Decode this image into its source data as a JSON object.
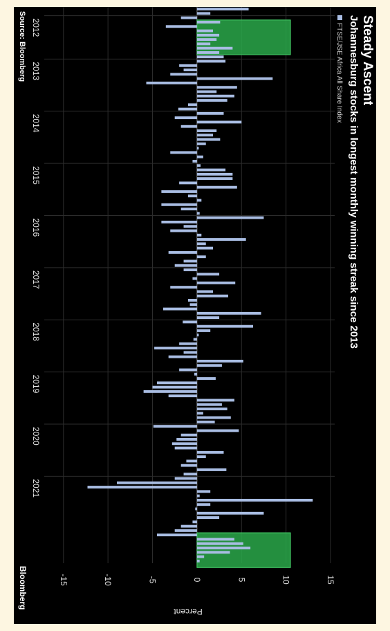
{
  "chart_data": {
    "type": "bar",
    "title": "Steady Ascent",
    "subtitle": "Johannesburg stocks in longest monthly winning streak since 2013",
    "ylabel": "Percent",
    "ylim": [
      -17,
      15
    ],
    "yticks": [
      -15,
      -10,
      -5,
      0,
      5,
      10,
      15
    ],
    "grid": true,
    "legend": "top-left",
    "series": [
      {
        "name": "FTSE/JSE Africa All Share Index",
        "color": "#a9bde3",
        "values": [
          5.8,
          1.5,
          -1.8,
          2.6,
          -3.5,
          1.8,
          2.5,
          2.2,
          1.5,
          4.0,
          2.5,
          3.0,
          3.2,
          -2.0,
          -1.5,
          -3.0,
          8.5,
          -5.7,
          4.5,
          2.2,
          4.2,
          3.4,
          -1.0,
          -2.1,
          3.0,
          -2.5,
          5.0,
          -1.8,
          2.2,
          1.8,
          2.6,
          1.0,
          0.2,
          -3.0,
          0.7,
          -0.5,
          0.4,
          3.2,
          4.0,
          4.0,
          -2.0,
          4.5,
          -4.0,
          -1.0,
          0.5,
          -4.0,
          -1.8,
          0.3,
          7.5,
          -4.0,
          -1.5,
          -3.0,
          0.5,
          5.5,
          1.0,
          1.8,
          -3.2,
          1.0,
          -1.5,
          -2.5,
          -1.5,
          2.5,
          -0.5,
          4.3,
          -3.0,
          1.8,
          3.5,
          -1.0,
          -0.8,
          -3.8,
          7.2,
          2.5,
          -1.6,
          6.3,
          1.5,
          0.2,
          -0.4,
          -2.0,
          -4.8,
          -1.5,
          -3.2,
          5.2,
          2.8,
          -2.0,
          -0.3,
          2.1,
          -4.5,
          -5.0,
          -6.0,
          -3.2,
          4.2,
          2.8,
          3.4,
          0.7,
          3.8,
          2.0,
          -4.9,
          4.7,
          -1.8,
          -2.3,
          -2.8,
          -2.5,
          3.0,
          1.0,
          -1.2,
          -1.8,
          3.3,
          -1.5,
          -2.5,
          -9.0,
          -12.3,
          1.5,
          0.3,
          13.0,
          1.5,
          -0.2,
          7.5,
          2.5,
          -0.5,
          -1.8,
          -2.5,
          -4.5,
          4.2,
          5.2,
          6.0,
          3.7,
          0.8,
          0.3
        ]
      }
    ],
    "x_ticks": [
      "2012",
      "2013",
      "2014",
      "2015",
      "2016",
      "2017",
      "2018",
      "2019",
      "2020",
      "2021"
    ],
    "x_tick_months": [
      2,
      12,
      24,
      36,
      48,
      60,
      72,
      84,
      96,
      108
    ],
    "highlights": [
      {
        "from_month": 3,
        "to_month": 11,
        "ylim": [
          0,
          10.5
        ],
        "color": "#2aa84a"
      },
      {
        "from_month": 121,
        "to_month": 129,
        "ylim": [
          0,
          10.5
        ],
        "color": "#2aa84a"
      }
    ]
  },
  "source": "Source: Bloomberg",
  "brand": "Bloomberg"
}
